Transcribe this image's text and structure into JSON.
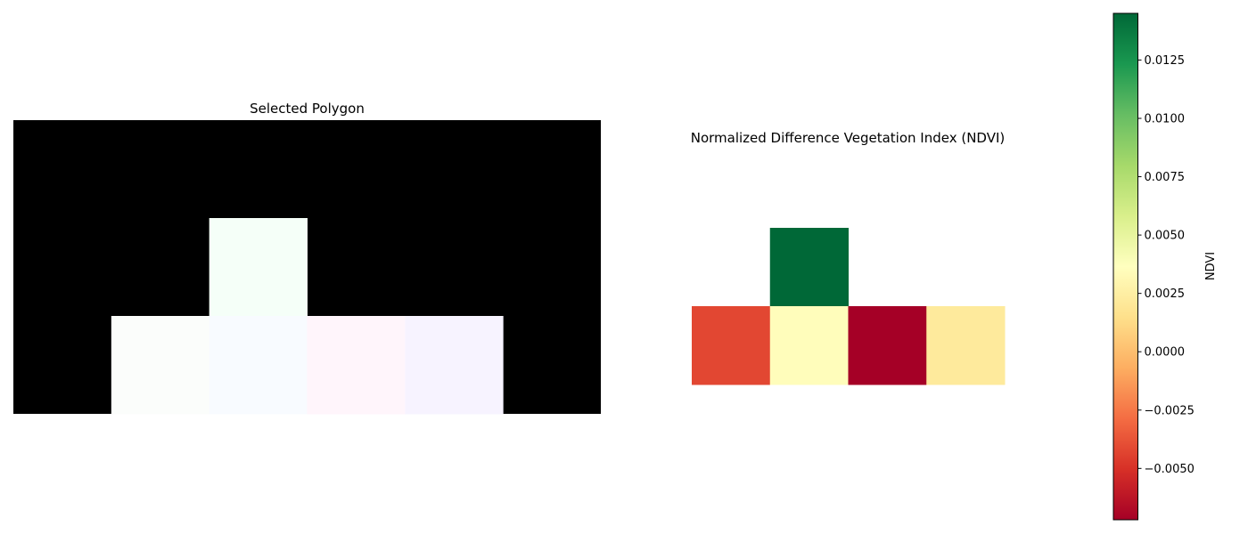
{
  "chart_data": [
    {
      "type": "heatmap",
      "title": "Selected Polygon",
      "rows": 3,
      "cols": 6,
      "axes": "off",
      "background_color": "#000000",
      "cells": [
        {
          "row": 1,
          "col": 2,
          "color": "#f5fff8"
        },
        {
          "row": 2,
          "col": 1,
          "color": "#fbfdfb"
        },
        {
          "row": 2,
          "col": 2,
          "color": "#f8fbff"
        },
        {
          "row": 2,
          "col": 3,
          "color": "#fff5fb"
        },
        {
          "row": 2,
          "col": 4,
          "color": "#f7f3ff"
        }
      ]
    },
    {
      "type": "heatmap",
      "title": "Normalized Difference Vegetation Index (NDVI)",
      "rows": 2,
      "cols": 4,
      "axes": "off",
      "colormap": "RdYlGn",
      "vmin": -0.0072,
      "vmax": 0.0145,
      "cells": [
        {
          "row": 0,
          "col": 1,
          "value": 0.0145
        },
        {
          "row": 1,
          "col": 0,
          "value": -0.0042
        },
        {
          "row": 1,
          "col": 1,
          "value": 0.0035
        },
        {
          "row": 1,
          "col": 2,
          "value": -0.0072
        },
        {
          "row": 1,
          "col": 3,
          "value": 0.0022
        }
      ],
      "colorbar": {
        "label": "NDVI",
        "ticks": [
          -0.005,
          -0.0025,
          0.0,
          0.0025,
          0.005,
          0.0075,
          0.01,
          0.0125
        ],
        "tick_labels": [
          "−0.0050",
          "−0.0025",
          "0.0000",
          "0.0025",
          "0.0050",
          "0.0075",
          "0.0100",
          "0.0125"
        ]
      }
    }
  ],
  "colors": {
    "colormap_stops": [
      "#a50026",
      "#d73027",
      "#f46d43",
      "#fdae61",
      "#fee08b",
      "#ffffbf",
      "#d9ef8b",
      "#a6d96a",
      "#66bd63",
      "#1a9850",
      "#006837"
    ]
  }
}
